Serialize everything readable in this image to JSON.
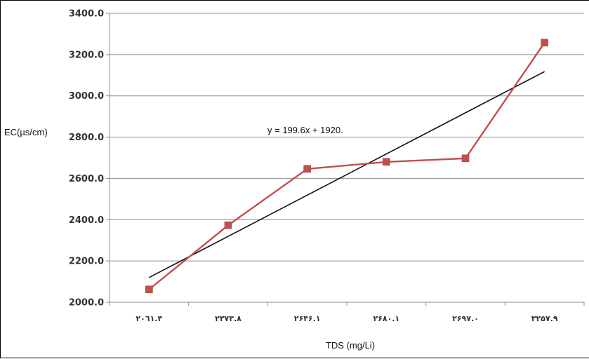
{
  "chart_data": {
    "type": "line",
    "xlabel": "TDS (mg/Li)",
    "ylabel": "EC(µs/cm)",
    "categories": [
      "٢٠٦١.۴",
      "٢٣٧٣.٨",
      "٢۶۴۶.١",
      "٢۶٨٠.١",
      "٢۶٩٧.٠",
      "٣٢۵٧.٩"
    ],
    "y_ticks": [
      "2000.0",
      "2200.0",
      "2400.0",
      "2600.0",
      "2800.0",
      "3000.0",
      "3200.0",
      "3400.0"
    ],
    "ylim": [
      2000,
      3400
    ],
    "grid": "horizontal",
    "series": [
      {
        "values": [
          2062,
          2373,
          2646,
          2680,
          2697,
          3258
        ],
        "color": "#c0504d",
        "marker": "square"
      }
    ],
    "trendline": {
      "equation": "y = 199.6x + 1920.",
      "slope": 199.6,
      "intercept": 1920,
      "color": "#111111"
    }
  }
}
